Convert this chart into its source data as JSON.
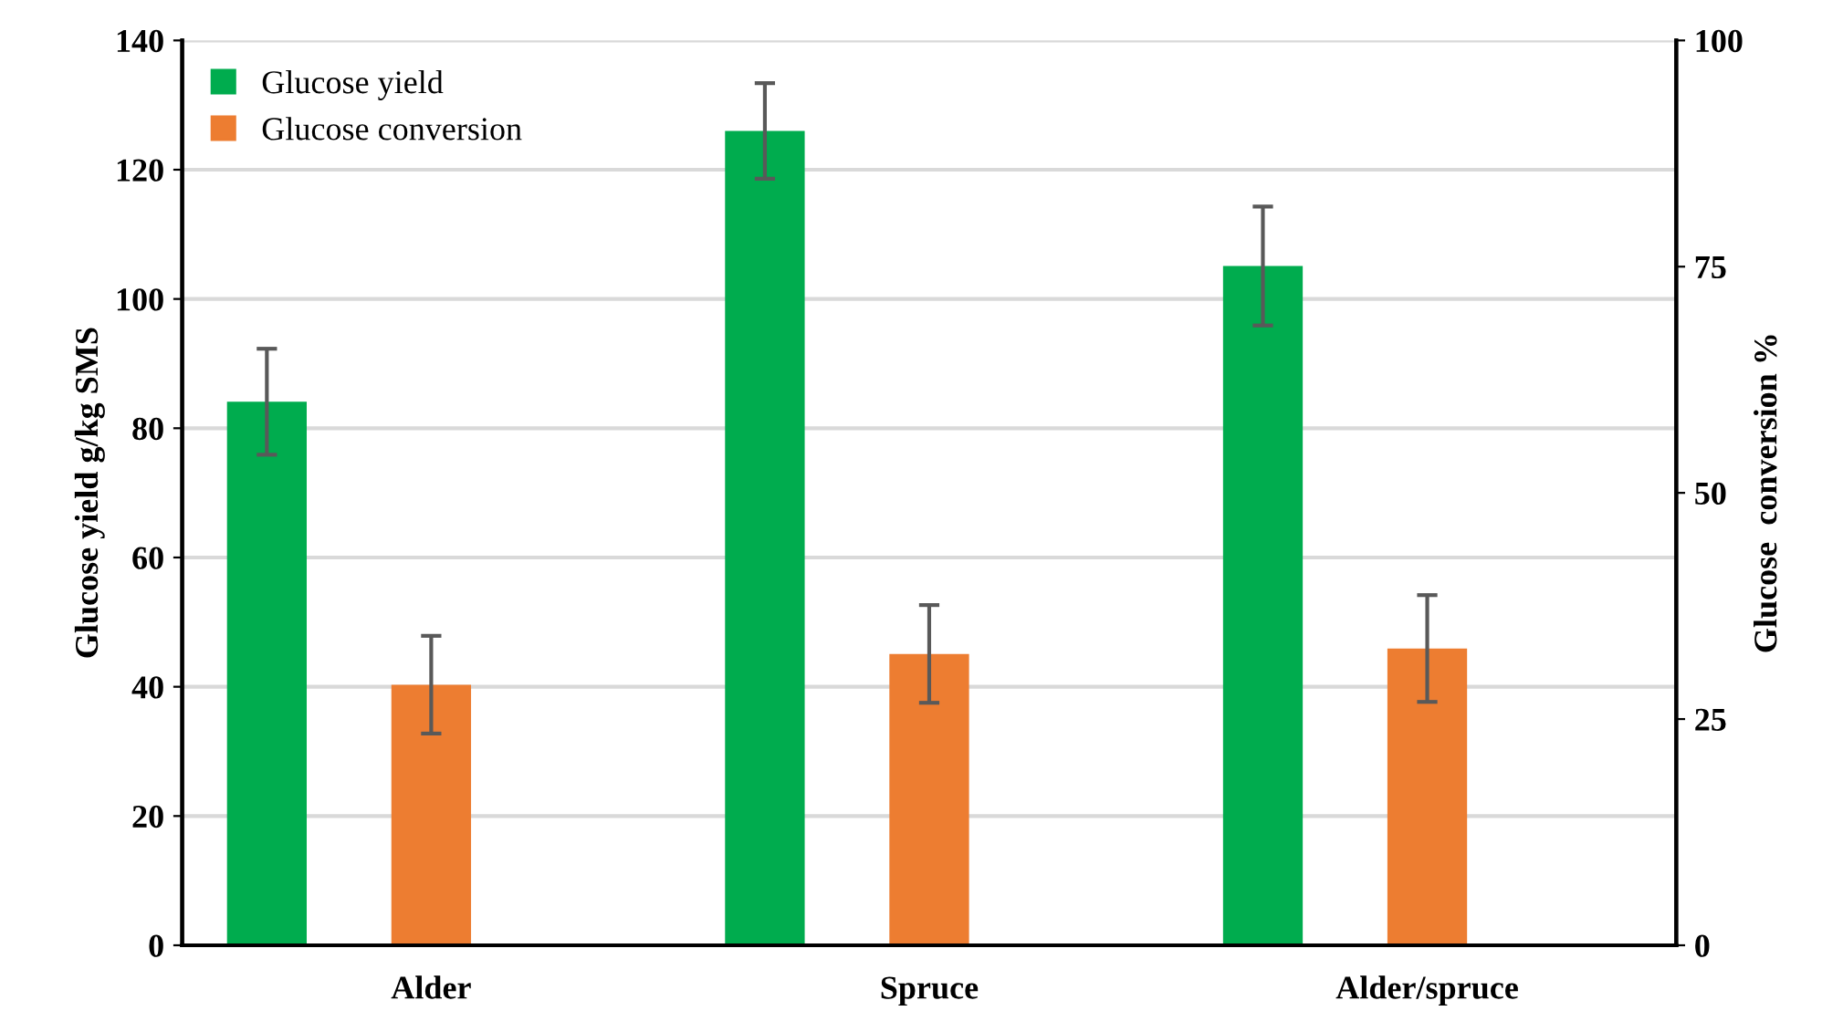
{
  "chart_data": {
    "type": "bar",
    "categories": [
      "Alder",
      "Spruce",
      "Alder/spruce"
    ],
    "series": [
      {
        "name": "Glucose yield",
        "color": "#00ac4e",
        "values": [
          84.1,
          126,
          105.1
        ],
        "errors": [
          8.2,
          7.4,
          9.2
        ]
      },
      {
        "name": "Glucose conversion",
        "color": "#ed7d31",
        "values": [
          28.8,
          32.2,
          32.8
        ],
        "errors": [
          5.4,
          5.4,
          5.9
        ],
        "axis": "y2"
      }
    ],
    "ylabel": "Glucose yield g/kg SMS",
    "y2label": "Glucose  conversion %",
    "ylim": [
      0,
      140
    ],
    "yticks": [
      0,
      20,
      40,
      60,
      80,
      100,
      120,
      140
    ],
    "y2lim": [
      0,
      100
    ],
    "y2ticks": [
      0,
      25,
      50,
      75,
      100
    ],
    "grid": "y",
    "legend": "top left"
  }
}
